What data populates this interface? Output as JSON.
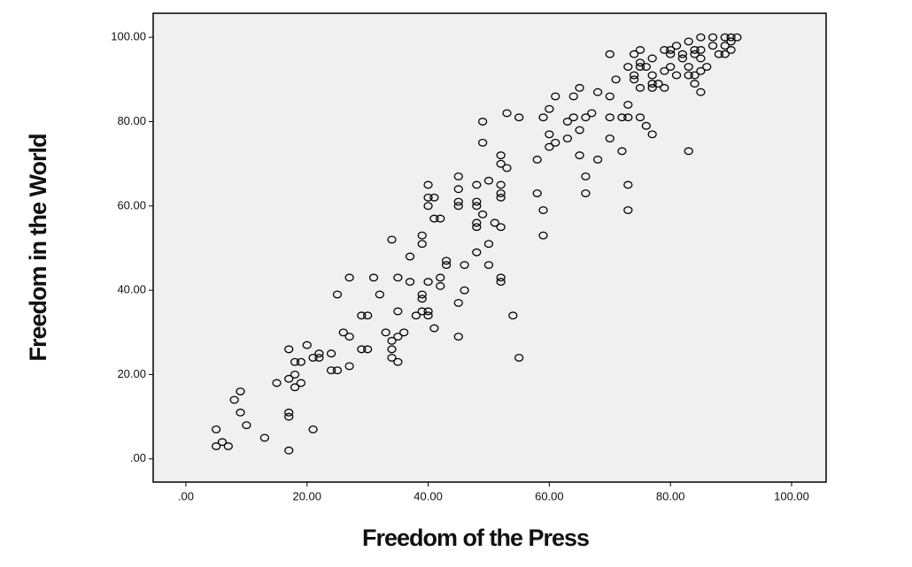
{
  "chart_data": {
    "type": "scatter",
    "x_label": "Freedom of the Press",
    "y_label": "Freedom in the World",
    "xlim": [
      -5.4,
      105.7
    ],
    "ylim": [
      -5.5,
      105.7
    ],
    "xticks": [
      {
        "value": 0,
        "label": ".00"
      },
      {
        "value": 20,
        "label": "20.00"
      },
      {
        "value": 40,
        "label": "40.00"
      },
      {
        "value": 60,
        "label": "60.00"
      },
      {
        "value": 80,
        "label": "80.00"
      },
      {
        "value": 100,
        "label": "100.00"
      }
    ],
    "yticks": [
      {
        "value": 0,
        "label": ".00"
      },
      {
        "value": 20,
        "label": "20.00"
      },
      {
        "value": 40,
        "label": "40.00"
      },
      {
        "value": 60,
        "label": "60.00"
      },
      {
        "value": 80,
        "label": "80.00"
      },
      {
        "value": 100,
        "label": "100.00"
      }
    ],
    "color": "#000000",
    "x": [
      5,
      5,
      6,
      7,
      8,
      9,
      9,
      10,
      13,
      15,
      17,
      17,
      17,
      17,
      17,
      18,
      18,
      18,
      19,
      19,
      20,
      21,
      21,
      22,
      22,
      24,
      24,
      25,
      25,
      26,
      27,
      27,
      27,
      29,
      29,
      30,
      30,
      31,
      32,
      33,
      34,
      34,
      34,
      34,
      35,
      35,
      35,
      35,
      36,
      37,
      37,
      38,
      39,
      39,
      39,
      39,
      39,
      40,
      40,
      40,
      40,
      40,
      40,
      41,
      41,
      41,
      42,
      42,
      42,
      43,
      43,
      45,
      45,
      45,
      45,
      45,
      45,
      46,
      46,
      48,
      48,
      48,
      48,
      48,
      48,
      49,
      49,
      49,
      50,
      50,
      50,
      51,
      52,
      52,
      52,
      52,
      52,
      52,
      52,
      52,
      53,
      53,
      54,
      55,
      55,
      58,
      58,
      59,
      59,
      59,
      60,
      60,
      60,
      61,
      61,
      63,
      63,
      64,
      64,
      65,
      65,
      65,
      66,
      66,
      66,
      67,
      68,
      68,
      70,
      70,
      70,
      70,
      71,
      72,
      72,
      73,
      73,
      73,
      73,
      73,
      74,
      74,
      74,
      75,
      75,
      75,
      75,
      75,
      76,
      76,
      77,
      77,
      77,
      77,
      77,
      78,
      79,
      79,
      79,
      80,
      80,
      80,
      81,
      81,
      82,
      82,
      83,
      83,
      83,
      83,
      84,
      84,
      84,
      84,
      85,
      85,
      85,
      85,
      85,
      86,
      87,
      87,
      88,
      89,
      89,
      89,
      90,
      90,
      90,
      91
    ],
    "values": [
      7,
      3,
      4,
      3,
      14,
      16,
      11,
      8,
      5,
      18,
      26,
      19,
      11,
      10,
      2,
      23,
      20,
      17,
      23,
      18,
      27,
      24,
      7,
      25,
      24,
      25,
      21,
      21,
      39,
      30,
      29,
      22,
      43,
      34,
      26,
      34,
      26,
      43,
      39,
      30,
      52,
      28,
      26,
      24,
      23,
      29,
      43,
      35,
      30,
      48,
      42,
      34,
      53,
      51,
      39,
      38,
      35,
      65,
      62,
      60,
      42,
      35,
      34,
      62,
      57,
      31,
      57,
      43,
      41,
      47,
      46,
      67,
      64,
      61,
      60,
      37,
      29,
      46,
      40,
      65,
      61,
      60,
      56,
      55,
      49,
      80,
      75,
      58,
      66,
      51,
      46,
      56,
      72,
      70,
      65,
      63,
      62,
      55,
      43,
      42,
      82,
      69,
      34,
      81,
      24,
      71,
      63,
      59,
      53,
      81,
      83,
      77,
      74,
      86,
      75,
      80,
      76,
      81,
      86,
      88,
      78,
      72,
      81,
      67,
      63,
      82,
      87,
      71,
      96,
      86,
      81,
      76,
      90,
      81,
      73,
      93,
      84,
      81,
      65,
      59,
      96,
      91,
      90,
      97,
      94,
      93,
      88,
      81,
      93,
      79,
      95,
      91,
      89,
      88,
      77,
      89,
      97,
      92,
      88,
      97,
      96,
      93,
      98,
      91,
      96,
      95,
      99,
      93,
      91,
      73,
      97,
      96,
      91,
      89,
      100,
      97,
      95,
      92,
      87,
      93,
      100,
      98,
      96,
      100,
      98,
      96,
      100,
      99,
      97,
      100
    ]
  }
}
